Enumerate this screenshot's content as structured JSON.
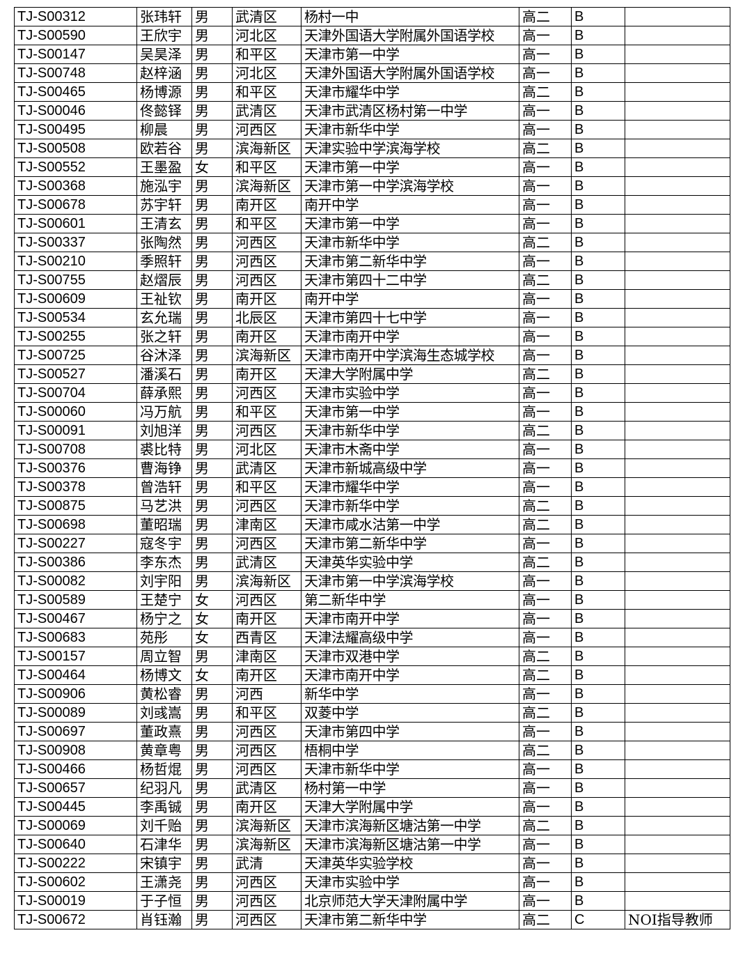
{
  "table": {
    "rows": [
      [
        "TJ-S00312",
        "张玮轩",
        "男",
        "武清区",
        "杨村一中",
        "高二",
        "B"
      ],
      [
        "TJ-S00590",
        "王欣宇",
        "男",
        "河北区",
        "天津外国语大学附属外国语学校",
        "高一",
        "B"
      ],
      [
        "TJ-S00147",
        "吴昊泽",
        "男",
        "和平区",
        "天津市第一中学",
        "高一",
        "B"
      ],
      [
        "TJ-S00748",
        "赵梓涵",
        "男",
        "河北区",
        "天津外国语大学附属外国语学校",
        "高一",
        "B"
      ],
      [
        "TJ-S00465",
        "杨博源",
        "男",
        "和平区",
        "天津市耀华中学",
        "高二",
        "B"
      ],
      [
        "TJ-S00046",
        "佟懿铎",
        "男",
        "武清区",
        "天津市武清区杨村第一中学",
        "高一",
        "B"
      ],
      [
        "TJ-S00495",
        "柳晨",
        "男",
        "河西区",
        "天津市新华中学",
        "高一",
        "B"
      ],
      [
        "TJ-S00508",
        "欧若谷",
        "男",
        "滨海新区",
        "天津实验中学滨海学校",
        "高二",
        "B"
      ],
      [
        "TJ-S00552",
        "王墨盈",
        "女",
        "和平区",
        "天津市第一中学",
        "高一",
        "B"
      ],
      [
        "TJ-S00368",
        "施泓宇",
        "男",
        "滨海新区",
        "天津市第一中学滨海学校",
        "高一",
        "B"
      ],
      [
        "TJ-S00678",
        "苏宇轩",
        "男",
        "南开区",
        "南开中学",
        "高一",
        "B"
      ],
      [
        "TJ-S00601",
        "王清玄",
        "男",
        "和平区",
        "天津市第一中学",
        "高一",
        "B"
      ],
      [
        "TJ-S00337",
        "张陶然",
        "男",
        "河西区",
        "天津市新华中学",
        "高二",
        "B"
      ],
      [
        "TJ-S00210",
        "季照轩",
        "男",
        "河西区",
        "天津市第二新华中学",
        "高一",
        "B"
      ],
      [
        "TJ-S00755",
        "赵熠辰",
        "男",
        "河西区",
        "天津市第四十二中学",
        "高二",
        "B"
      ],
      [
        "TJ-S00609",
        "王祉钦",
        "男",
        "南开区",
        "南开中学",
        "高一",
        "B"
      ],
      [
        "TJ-S00534",
        "玄允瑞",
        "男",
        "北辰区",
        "天津市第四十七中学",
        "高一",
        "B"
      ],
      [
        "TJ-S00255",
        "张之轩",
        "男",
        "南开区",
        "天津市南开中学",
        "高一",
        "B"
      ],
      [
        "TJ-S00725",
        "谷沐泽",
        "男",
        "滨海新区",
        "天津市南开中学滨海生态城学校",
        "高一",
        "B"
      ],
      [
        "TJ-S00527",
        "潘溪石",
        "男",
        "南开区",
        "天津大学附属中学",
        "高二",
        "B"
      ],
      [
        "TJ-S00704",
        "薛承熙",
        "男",
        "河西区",
        "天津市实验中学",
        "高一",
        "B"
      ],
      [
        "TJ-S00060",
        "冯万航",
        "男",
        "和平区",
        "天津市第一中学",
        "高一",
        "B"
      ],
      [
        "TJ-S00091",
        "刘旭洋",
        "男",
        "河西区",
        "天津市新华中学",
        "高二",
        "B"
      ],
      [
        "TJ-S00708",
        "裘比特",
        "男",
        "河北区",
        "天津市木斋中学",
        "高一",
        "B"
      ],
      [
        "TJ-S00376",
        "曹海铮",
        "男",
        "武清区",
        "天津市新城高级中学",
        "高一",
        "B"
      ],
      [
        "TJ-S00378",
        "曾浩轩",
        "男",
        "和平区",
        "天津市耀华中学",
        "高一",
        "B"
      ],
      [
        "TJ-S00875",
        "马艺洪",
        "男",
        "河西区",
        "天津市新华中学",
        "高二",
        "B"
      ],
      [
        "TJ-S00698",
        "董昭瑞",
        "男",
        "津南区",
        "天津市咸水沽第一中学",
        "高二",
        "B"
      ],
      [
        "TJ-S00227",
        "寇冬宇",
        "男",
        "河西区",
        "天津市第二新华中学",
        "高一",
        "B"
      ],
      [
        "TJ-S00386",
        "李东杰",
        "男",
        "武清区",
        "天津英华实验中学",
        "高二",
        "B"
      ],
      [
        "TJ-S00082",
        "刘宇阳",
        "男",
        "滨海新区",
        "天津市第一中学滨海学校",
        "高一",
        "B"
      ],
      [
        "TJ-S00589",
        "王楚宁",
        "女",
        "河西区",
        "第二新华中学",
        "高一",
        "B"
      ],
      [
        "TJ-S00467",
        "杨宁之",
        "女",
        "南开区",
        "天津市南开中学",
        "高一",
        "B"
      ],
      [
        "TJ-S00683",
        "苑彤",
        "女",
        "西青区",
        "天津法耀高级中学",
        "高一",
        "B"
      ],
      [
        "TJ-S00157",
        "周立智",
        "男",
        "津南区",
        "天津市双港中学",
        "高二",
        "B"
      ],
      [
        "TJ-S00464",
        "杨博文",
        "女",
        "南开区",
        "天津市南开中学",
        "高二",
        "B"
      ],
      [
        "TJ-S00906",
        "黄松睿",
        "男",
        "河西",
        "新华中学",
        "高一",
        "B"
      ],
      [
        "TJ-S00089",
        "刘彧嵩",
        "男",
        "和平区",
        "双菱中学",
        "高二",
        "B"
      ],
      [
        "TJ-S00697",
        "董政熹",
        "男",
        "河西区",
        "天津市第四中学",
        "高一",
        "B"
      ],
      [
        "TJ-S00908",
        "黄章粤",
        "男",
        "河西区",
        "梧桐中学",
        "高二",
        "B"
      ],
      [
        "TJ-S00466",
        "杨哲焜",
        "男",
        "河西区",
        "天津市新华中学",
        "高一",
        "B"
      ],
      [
        "TJ-S00657",
        "纪羽凡",
        "男",
        "武清区",
        "杨村第一中学",
        "高一",
        "B"
      ],
      [
        "TJ-S00445",
        "李禹铖",
        "男",
        "南开区",
        "天津大学附属中学",
        "高一",
        "B"
      ],
      [
        "TJ-S00069",
        "刘千贻",
        "男",
        "滨海新区",
        "天津市滨海新区塘沽第一中学",
        "高二",
        "B"
      ],
      [
        "TJ-S00640",
        "石津华",
        "男",
        "滨海新区",
        "天津市滨海新区塘沽第一中学",
        "高一",
        "B"
      ],
      [
        "TJ-S00222",
        "宋镇宇",
        "男",
        "武清",
        "天津英华实验学校",
        "高一",
        "B"
      ],
      [
        "TJ-S00602",
        "王潇尧",
        "男",
        "河西区",
        "天津市实验中学",
        "高一",
        "B"
      ],
      [
        "TJ-S00019",
        "于子恒",
        "男",
        "河西区",
        "北京师范大学天津附属中学",
        "高一",
        "B"
      ],
      [
        "TJ-S00672",
        "肖钰瀚",
        "男",
        "河西区",
        "天津市第二新华中学",
        "高二",
        "C",
        "NOI指导教师"
      ]
    ]
  }
}
